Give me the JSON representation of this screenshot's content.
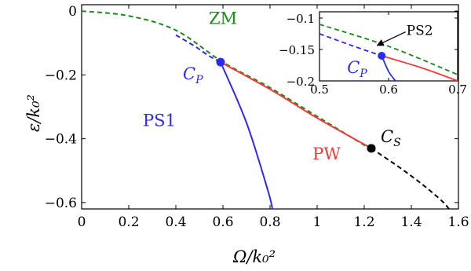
{
  "chart_data": [
    {
      "type": "line",
      "xlabel": "Ω/k₀²",
      "ylabel": "ε/k₀²",
      "xlim": [
        0,
        1.6
      ],
      "ylim": [
        -0.62,
        0.02
      ],
      "xticks": [
        "0",
        "0.2",
        "0.4",
        "0.6",
        "0.8",
        "1",
        "1.2",
        "1.4",
        "1.6"
      ],
      "xtick_values": [
        0,
        0.2,
        0.4,
        0.6,
        0.8,
        1.0,
        1.2,
        1.4,
        1.6
      ],
      "yticks": [
        "0",
        "−0.2",
        "−0.4",
        "−0.6"
      ],
      "ytick_values": [
        0,
        -0.2,
        -0.4,
        -0.6
      ],
      "grid": false,
      "colors": {
        "green": "#1a8a1a",
        "blue": "#2a2af0",
        "red": "#f03c3c",
        "black": "#000000"
      },
      "series": [
        {
          "id": "zm-green-dashed",
          "color": "green",
          "style": "dashed",
          "x": [
            0,
            0.2,
            0.4,
            0.6,
            0.8,
            1.0,
            1.2,
            1.23
          ],
          "y": [
            0,
            -0.015,
            -0.06,
            -0.16,
            -0.24,
            -0.33,
            -0.42,
            -0.43
          ]
        },
        {
          "id": "blue-dashed",
          "color": "blue",
          "style": "dashed",
          "x": [
            0.4,
            0.48,
            0.54,
            0.59
          ],
          "y": [
            -0.075,
            -0.11,
            -0.14,
            -0.16
          ]
        },
        {
          "id": "blue-solid",
          "color": "blue",
          "style": "solid",
          "x": [
            0.59,
            0.7,
            0.79,
            0.81
          ],
          "y": [
            -0.16,
            -0.35,
            -0.56,
            -0.62
          ]
        },
        {
          "id": "red-solid",
          "color": "red",
          "style": "solid",
          "x": [
            0.59,
            0.8,
            1.0,
            1.23
          ],
          "y": [
            -0.16,
            -0.245,
            -0.335,
            -0.43
          ]
        },
        {
          "id": "black-dashed",
          "color": "black",
          "style": "dashed",
          "x": [
            1.23,
            1.35,
            1.45,
            1.53,
            1.56
          ],
          "y": [
            -0.43,
            -0.49,
            -0.545,
            -0.595,
            -0.62
          ]
        }
      ],
      "points": [
        {
          "id": "cp",
          "x": 0.59,
          "y": -0.16,
          "color": "blue",
          "label": "C",
          "sub": "P"
        },
        {
          "id": "cs",
          "x": 1.23,
          "y": -0.43,
          "color": "black",
          "label": "C",
          "sub": "S"
        }
      ],
      "annotations": [
        {
          "id": "zm",
          "text": "ZM",
          "color": "green",
          "x": 0.6,
          "y": -0.04
        },
        {
          "id": "ps1",
          "text": "PS1",
          "color": "blue",
          "x": 0.33,
          "y": -0.36
        },
        {
          "id": "pw",
          "text": "PW",
          "color": "red",
          "x": 1.04,
          "y": -0.465
        }
      ]
    },
    {
      "type": "line",
      "inset": true,
      "xlim": [
        0.5,
        0.7
      ],
      "ylim": [
        -0.2,
        -0.09
      ],
      "xticks": [
        "0.5",
        "0.6",
        "0.7"
      ],
      "xtick_values": [
        0.5,
        0.6,
        0.7
      ],
      "yticks": [
        "−0.1",
        "−0.15",
        "−0.2"
      ],
      "ytick_values": [
        -0.1,
        -0.15,
        -0.2
      ],
      "series": [
        {
          "id": "inset-green-dashed",
          "color": "green",
          "style": "dashed",
          "x": [
            0.5,
            0.6,
            0.7
          ],
          "y": [
            -0.11,
            -0.145,
            -0.19
          ]
        },
        {
          "id": "inset-blue-dashed",
          "color": "blue",
          "style": "dashed",
          "x": [
            0.5,
            0.55,
            0.59
          ],
          "y": [
            -0.125,
            -0.145,
            -0.16
          ]
        },
        {
          "id": "inset-red-solid",
          "color": "red",
          "style": "solid",
          "x": [
            0.59,
            0.65,
            0.7
          ],
          "y": [
            -0.16,
            -0.18,
            -0.2
          ]
        },
        {
          "id": "inset-blue-solid",
          "color": "blue",
          "style": "solid",
          "x": [
            0.59,
            0.6,
            0.61
          ],
          "y": [
            -0.16,
            -0.185,
            -0.2
          ]
        }
      ],
      "points": [
        {
          "id": "inset-cp",
          "x": 0.59,
          "y": -0.16,
          "color": "blue",
          "label": "C",
          "sub": "P"
        }
      ],
      "annotations": [
        {
          "id": "ps2",
          "text": "PS2",
          "color": "black",
          "x": 0.645,
          "y": -0.127,
          "arrow_to": {
            "x": 0.58,
            "y": -0.146
          }
        }
      ]
    }
  ]
}
